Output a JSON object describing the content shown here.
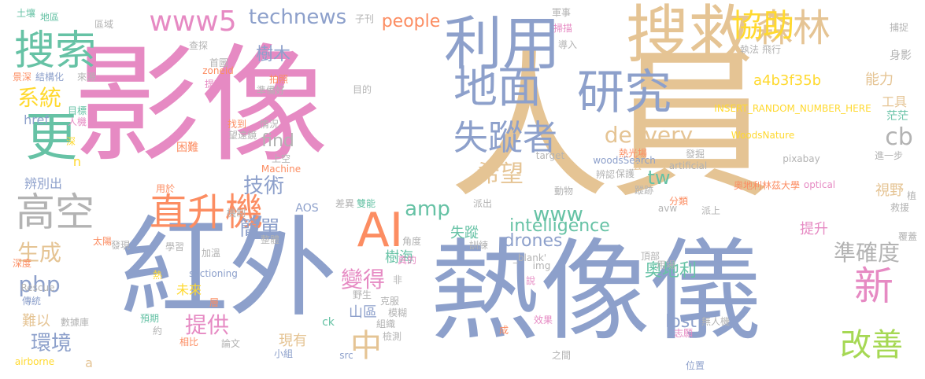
{
  "palette": {
    "pink": "#e68ac3",
    "tan": "#e5c494",
    "blue": "#8da0cb",
    "green": "#66c2a5",
    "orange": "#fc8d62",
    "lime": "#a6d854",
    "yellow": "#ffd92f",
    "grey": "#b3b3b3"
  },
  "words": [
    {
      "text": "影像"
    },
    {
      "text": "人員"
    },
    {
      "text": "紅外"
    },
    {
      "text": "熱像儀"
    },
    {
      "text": "搜救"
    },
    {
      "text": "利用"
    },
    {
      "text": "地面"
    },
    {
      "text": "研究"
    },
    {
      "text": "森林"
    },
    {
      "text": "搜索"
    },
    {
      "text": "更"
    },
    {
      "text": "高空"
    },
    {
      "text": "AI"
    },
    {
      "text": "直升機"
    },
    {
      "text": "www5"
    },
    {
      "text": "失蹤者"
    },
    {
      "text": "協助"
    },
    {
      "text": "technews"
    },
    {
      "text": "新"
    },
    {
      "text": "改善"
    },
    {
      "text": "中"
    },
    {
      "text": "準確度"
    },
    {
      "text": "希望"
    },
    {
      "text": "delivery"
    },
    {
      "text": "cb"
    },
    {
      "text": "系統"
    },
    {
      "text": "技術"
    },
    {
      "text": "生成"
    },
    {
      "text": "php"
    },
    {
      "text": "環境"
    },
    {
      "text": "變得"
    },
    {
      "text": "提供"
    },
    {
      "text": "簡單"
    },
    {
      "text": "amp"
    },
    {
      "text": "www"
    },
    {
      "text": "tw"
    },
    {
      "text": "intelligence"
    },
    {
      "text": "樹木"
    },
    {
      "text": "people"
    },
    {
      "text": "a4b3f35b"
    },
    {
      "text": "drones"
    },
    {
      "text": "lost"
    },
    {
      "text": "奧地利"
    },
    {
      "text": "find"
    },
    {
      "text": "能力"
    },
    {
      "text": "工具"
    },
    {
      "text": "身影"
    },
    {
      "text": "茫茫"
    },
    {
      "text": "視野"
    },
    {
      "text": "提升"
    },
    {
      "text": "樹海"
    },
    {
      "text": "失蹤"
    },
    {
      "text": "山區"
    },
    {
      "text": "難以"
    },
    {
      "text": "現有"
    },
    {
      "text": "INSERT_RANDOM_NUMBER_HERE"
    },
    {
      "text": "WoodsNature"
    },
    {
      "text": "奧地利林茲大學"
    },
    {
      "text": "optical"
    },
    {
      "text": "pixabay"
    },
    {
      "text": "woodsSearch"
    },
    {
      "text": "artificial"
    },
    {
      "text": "target"
    },
    {
      "text": "zoneid"
    },
    {
      "text": "href"
    },
    {
      "text": "sectioning"
    },
    {
      "text": "Machine"
    },
    {
      "text": "Rescue"
    },
    {
      "text": "airborne"
    },
    {
      "text": "_blank'"
    },
    {
      "text": "img"
    },
    {
      "text": "src"
    },
    {
      "text": "avw"
    },
    {
      "text": "AOS"
    },
    {
      "text": "ck"
    },
    {
      "text": "a"
    },
    {
      "text": "n"
    },
    {
      "text": "辨別出"
    },
    {
      "text": "困難"
    },
    {
      "text": "未來"
    },
    {
      "text": "土壤"
    },
    {
      "text": "地區"
    },
    {
      "text": "區域"
    },
    {
      "text": "子刊"
    },
    {
      "text": "軍事"
    },
    {
      "text": "捕捉"
    },
    {
      "text": "景深"
    },
    {
      "text": "結構化"
    },
    {
      "text": "來源"
    },
    {
      "text": "查探"
    },
    {
      "text": "首圖"
    },
    {
      "text": "掃描"
    },
    {
      "text": "導入"
    },
    {
      "text": "執法"
    },
    {
      "text": "飛行"
    },
    {
      "text": "提高"
    },
    {
      "text": "拍照"
    },
    {
      "text": "準備好"
    },
    {
      "text": "目的"
    },
    {
      "text": "目標"
    },
    {
      "text": "人機"
    },
    {
      "text": "找到"
    },
    {
      "text": "情況"
    },
    {
      "text": "望遠鏡"
    },
    {
      "text": "深"
    },
    {
      "text": "上空"
    },
    {
      "text": "熱光場"
    },
    {
      "text": "套"
    },
    {
      "text": "發掘"
    },
    {
      "text": "進一步"
    },
    {
      "text": "辨認"
    },
    {
      "text": "保護"
    },
    {
      "text": "用於"
    },
    {
      "text": "動物"
    },
    {
      "text": "蹤跡"
    },
    {
      "text": "植"
    },
    {
      "text": "差異"
    },
    {
      "text": "雙能"
    },
    {
      "text": "派出"
    },
    {
      "text": "分類"
    },
    {
      "text": "派上"
    },
    {
      "text": "救援"
    },
    {
      "text": "機制"
    },
    {
      "text": "整體"
    },
    {
      "text": "覆蓋"
    },
    {
      "text": "太陽"
    },
    {
      "text": "發現"
    },
    {
      "text": "學習"
    },
    {
      "text": "加溫"
    },
    {
      "text": "角度"
    },
    {
      "text": "訓練"
    },
    {
      "text": "頂部"
    },
    {
      "text": "深度"
    },
    {
      "text": "真的"
    },
    {
      "text": "用場"
    },
    {
      "text": "熱"
    },
    {
      "text": "非"
    },
    {
      "text": "說"
    },
    {
      "text": "傳統"
    },
    {
      "text": "層"
    },
    {
      "text": "野生"
    },
    {
      "text": "克服"
    },
    {
      "text": "模糊"
    },
    {
      "text": "數據庫"
    },
    {
      "text": "預期"
    },
    {
      "text": "組織"
    },
    {
      "text": "效果"
    },
    {
      "text": "無人機"
    },
    {
      "text": "約"
    },
    {
      "text": "志願"
    },
    {
      "text": "相比"
    },
    {
      "text": "論文"
    },
    {
      "text": "檢測"
    },
    {
      "text": "成"
    },
    {
      "text": "之間"
    },
    {
      "text": "小組"
    },
    {
      "text": "位置"
    }
  ]
}
